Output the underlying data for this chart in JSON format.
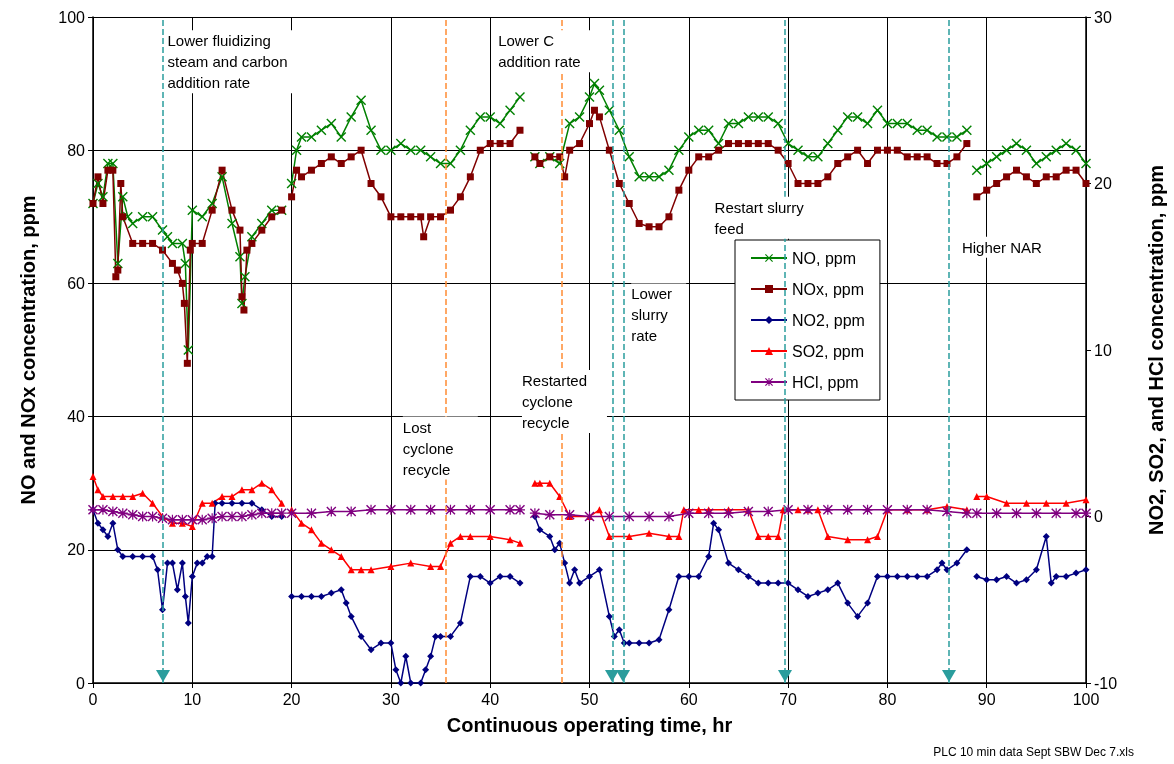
{
  "chart_data": {
    "type": "line",
    "xlabel": "Continuous operating time, hr",
    "ylabel": "NO and NOx concentration, ppm",
    "y2label": "NO2, SO2, and HCl concentration, ppm",
    "xlim": [
      0,
      100
    ],
    "xticks": [
      0,
      10,
      20,
      30,
      40,
      50,
      60,
      70,
      80,
      90,
      100
    ],
    "ylim": [
      0,
      100
    ],
    "yticks": [
      0,
      20,
      40,
      60,
      80,
      100
    ],
    "y2lim": [
      -10,
      30
    ],
    "y2ticks": [
      -10,
      0,
      10,
      20,
      30
    ],
    "grid": true,
    "legend": "right",
    "line_style": "solid",
    "series": [
      {
        "name": "NO, ppm",
        "color": "#008000",
        "marker": "cross",
        "x": [
          0,
          0.5,
          1,
          1.5,
          2,
          2.5,
          3,
          3.5,
          4,
          5,
          6,
          7,
          7.5,
          8,
          9,
          9.3,
          9.6,
          10,
          11,
          12,
          13,
          14,
          14.8,
          15,
          15.3,
          16,
          17,
          18,
          19,
          19.5,
          20,
          20.5,
          21,
          22,
          23,
          24,
          25,
          26,
          27,
          28,
          29,
          30,
          31,
          32,
          33,
          34,
          35,
          36,
          37,
          38,
          39,
          40,
          41,
          42,
          43,
          43.5,
          44.5,
          45,
          46,
          47,
          48,
          49,
          50,
          50.5,
          51,
          52,
          53,
          54,
          55,
          56,
          57,
          58,
          59,
          60,
          61,
          62,
          63,
          64,
          65,
          66,
          67,
          68,
          69,
          70,
          71,
          72,
          73,
          74,
          75,
          76,
          77,
          78,
          79,
          80,
          81,
          82,
          83,
          84,
          85,
          86,
          87,
          88,
          88.5,
          89,
          90,
          91,
          92,
          93,
          94,
          95,
          96,
          97,
          98,
          99,
          100
        ],
        "values": [
          72,
          75,
          73,
          78,
          78,
          63,
          73,
          70,
          69,
          70,
          70,
          68,
          67,
          66,
          66,
          63,
          50,
          71,
          70,
          72,
          76,
          69,
          64,
          57,
          61,
          67,
          69,
          71,
          71,
          null,
          75,
          80,
          82,
          82,
          83,
          84,
          82,
          85,
          87.5,
          83,
          80,
          80,
          81,
          80,
          80,
          79,
          78,
          78,
          80,
          83,
          85,
          85,
          84,
          86,
          88,
          null,
          79,
          78,
          79,
          78,
          84,
          85,
          88,
          90,
          89,
          86,
          83,
          79,
          76,
          76,
          76,
          77,
          80,
          82,
          83,
          83,
          81,
          84,
          84,
          85,
          85,
          85,
          84,
          81,
          80,
          79,
          79,
          81,
          83,
          85,
          85,
          84,
          86,
          84,
          84,
          84,
          83,
          83,
          82,
          82,
          82,
          83,
          null,
          77,
          78,
          79,
          80,
          81,
          80,
          78,
          79,
          80,
          81,
          80,
          78
        ]
      },
      {
        "name": "NOx, ppm",
        "color": "#800000",
        "marker": "square",
        "x": [
          0,
          0.5,
          1,
          1.5,
          2,
          2.3,
          2.5,
          2.8,
          3,
          4,
          5,
          6,
          7,
          8,
          8.5,
          9,
          9.2,
          9.5,
          9.8,
          10,
          11,
          12,
          13,
          14,
          14.8,
          15,
          15.2,
          15.5,
          16,
          17,
          18,
          19,
          19.5,
          20,
          20.5,
          21,
          22,
          23,
          24,
          25,
          26,
          27,
          28,
          29,
          30,
          31,
          32,
          33,
          33.3,
          34,
          35,
          36,
          37,
          38,
          39,
          40,
          41,
          42,
          43,
          43.5,
          44.5,
          45,
          46,
          47,
          47.5,
          48,
          49,
          50,
          50.5,
          51,
          52,
          53,
          54,
          55,
          56,
          57,
          58,
          59,
          60,
          61,
          62,
          63,
          64,
          65,
          66,
          67,
          68,
          69,
          70,
          71,
          72,
          73,
          74,
          75,
          76,
          77,
          78,
          79,
          80,
          81,
          82,
          83,
          84,
          85,
          86,
          87,
          88,
          88.5,
          89,
          90,
          91,
          92,
          93,
          94,
          95,
          96,
          97,
          98,
          99,
          100
        ],
        "values": [
          72,
          76,
          72,
          77,
          77,
          61,
          62,
          75,
          70,
          66,
          66,
          66,
          65,
          63,
          62,
          60,
          57,
          48,
          65,
          66,
          66,
          71,
          77,
          71,
          68,
          58,
          56,
          65,
          66,
          68,
          70,
          71,
          null,
          73,
          77,
          76,
          77,
          78,
          79,
          78,
          79,
          80,
          75,
          73,
          70,
          70,
          70,
          70,
          67,
          70,
          70,
          71,
          73,
          76,
          80,
          81,
          81,
          81,
          83,
          null,
          79,
          78,
          79,
          79,
          76,
          80,
          81,
          84,
          86,
          85,
          80,
          75,
          72,
          69,
          68.5,
          68.5,
          70,
          74,
          77,
          79,
          79,
          80,
          81,
          81,
          81,
          81,
          81,
          80,
          78,
          75,
          75,
          75,
          76,
          78,
          79,
          80,
          78,
          80,
          80,
          80,
          79,
          79,
          79,
          78,
          78,
          79,
          81,
          null,
          73,
          74,
          75,
          76,
          77,
          76,
          75,
          76,
          76,
          77,
          77,
          75
        ]
      },
      {
        "name": "NO2, ppm",
        "color": "#000080",
        "marker": "diamond",
        "axis": "y2",
        "x": [
          0,
          0.5,
          1,
          1.5,
          2,
          2.5,
          3,
          4,
          5,
          6,
          6.5,
          7,
          7.5,
          8,
          8.5,
          9,
          9.3,
          9.6,
          10,
          10.5,
          11,
          11.5,
          12,
          12.3,
          13,
          14,
          15,
          16,
          17,
          18,
          19,
          19.5,
          20,
          21,
          22,
          23,
          24,
          25,
          25.5,
          26,
          27,
          28,
          29,
          30,
          30.5,
          31,
          31.5,
          32,
          33,
          33.5,
          34,
          34.5,
          35,
          36,
          37,
          38,
          39,
          40,
          41,
          42,
          43,
          43.5,
          44.5,
          45,
          46,
          46.5,
          47,
          47.5,
          48,
          48.5,
          49,
          50,
          51,
          52,
          52.5,
          53,
          53.5,
          54,
          55,
          56,
          57,
          58,
          59,
          60,
          61,
          62,
          62.5,
          63,
          64,
          65,
          66,
          67,
          68,
          69,
          70,
          71,
          72,
          73,
          74,
          75,
          76,
          77,
          78,
          79,
          80,
          81,
          82,
          83,
          84,
          85,
          85.5,
          86,
          87,
          88,
          88.5,
          89,
          90,
          91,
          92,
          93,
          94,
          95,
          96,
          96.5,
          97,
          98,
          99,
          100
        ],
        "values": [
          0.4,
          -0.4,
          -0.8,
          -1.2,
          -0.4,
          -2,
          -2.4,
          -2.4,
          -2.4,
          -2.4,
          -3.2,
          -5.6,
          -2.8,
          -2.8,
          -4.4,
          -2.8,
          -4.8,
          -6.4,
          -3.6,
          -2.8,
          -2.8,
          -2.4,
          -2.4,
          0.8,
          0.8,
          0.8,
          0.8,
          0.8,
          0.4,
          0,
          0,
          null,
          -4.8,
          -4.8,
          -4.8,
          -4.8,
          -4.6,
          -4.4,
          -5.2,
          -6,
          -7.2,
          -8,
          -7.6,
          -7.6,
          -9.2,
          -10,
          -8.4,
          -10,
          -10,
          -9.2,
          -8.4,
          -7.2,
          -7.2,
          -7.2,
          -6.4,
          -3.6,
          -3.6,
          -4,
          -3.6,
          -3.6,
          -4,
          null,
          0,
          -0.8,
          -1.2,
          -2,
          -1.6,
          -2.8,
          -4,
          -3.2,
          -4,
          -3.6,
          -3.2,
          -6,
          -7.2,
          -6.8,
          -7.6,
          -7.6,
          -7.6,
          -7.6,
          -7.4,
          -5.6,
          -3.6,
          -3.6,
          -3.6,
          -2.4,
          -0.4,
          -0.8,
          -2.8,
          -3.2,
          -3.6,
          -4,
          -4,
          -4,
          -4,
          -4.4,
          -4.8,
          -4.6,
          -4.4,
          -4,
          -5.2,
          -6,
          -5.2,
          -3.6,
          -3.6,
          -3.6,
          -3.6,
          -3.6,
          -3.6,
          -3.2,
          -2.8,
          -3.2,
          -2.8,
          -2,
          null,
          -3.6,
          -3.8,
          -3.8,
          -3.6,
          -4,
          -3.8,
          -3.2,
          -1.2,
          -4,
          -3.6,
          -3.6,
          -3.4,
          -3.2
        ]
      },
      {
        "name": "SO2, ppm",
        "color": "#ff0000",
        "marker": "triangle",
        "axis": "y2",
        "x": [
          0,
          0.5,
          1,
          2,
          3,
          4,
          5,
          6,
          7,
          8,
          9,
          10,
          11,
          12,
          13,
          14,
          15,
          16,
          17,
          18,
          19,
          19.5,
          20,
          21,
          22,
          23,
          24,
          25,
          26,
          27,
          28,
          30,
          32,
          34,
          35,
          36,
          37,
          38,
          40,
          42,
          43,
          43.5,
          44.5,
          45,
          46,
          47,
          48,
          50,
          51,
          52,
          54,
          56,
          58,
          59,
          59.5,
          61,
          62,
          64,
          66,
          67,
          68,
          69,
          69.5,
          71,
          72,
          73,
          74,
          76,
          78,
          79,
          80,
          82,
          84,
          86,
          88,
          88.5,
          89,
          90,
          92,
          94,
          96,
          98,
          100
        ],
        "values": [
          2.4,
          1.6,
          1.2,
          1.2,
          1.2,
          1.2,
          1.4,
          0.8,
          0,
          -0.4,
          -0.4,
          -0.6,
          0.8,
          0.8,
          1.2,
          1.2,
          1.6,
          1.6,
          2,
          1.6,
          0.8,
          null,
          0.4,
          -0.4,
          -0.8,
          -1.6,
          -2,
          -2.4,
          -3.2,
          -3.2,
          -3.2,
          -3,
          -2.8,
          -3,
          -3,
          -1.6,
          -1.2,
          -1.2,
          -1.2,
          -1.4,
          -1.6,
          null,
          2,
          2,
          2,
          1.2,
          0,
          0,
          0.4,
          -1.2,
          -1.2,
          -1,
          -1.2,
          -1.2,
          0.4,
          0.4,
          0.4,
          0.4,
          0.4,
          -1.2,
          -1.2,
          -1.2,
          0.4,
          0.4,
          0.4,
          0.4,
          -1.2,
          -1.4,
          -1.4,
          -1.2,
          0.4,
          0.4,
          0.4,
          0.6,
          0.4,
          null,
          1.2,
          1.2,
          0.8,
          0.8,
          0.8,
          0.8,
          1
        ]
      },
      {
        "name": "HCl, ppm",
        "color": "#800080",
        "marker": "star",
        "axis": "y2",
        "x": [
          0,
          1,
          2,
          3,
          4,
          5,
          6,
          7,
          8,
          9,
          10,
          11,
          12,
          13,
          14,
          15,
          16,
          17,
          18,
          19,
          19.5,
          20,
          22,
          24,
          26,
          28,
          30,
          32,
          34,
          36,
          38,
          40,
          42,
          43,
          43.5,
          44.5,
          46,
          48,
          50,
          52,
          54,
          56,
          58,
          60,
          62,
          64,
          66,
          68,
          70,
          72,
          74,
          76,
          78,
          80,
          82,
          84,
          86,
          88,
          88.5,
          89,
          91,
          93,
          95,
          97,
          99,
          100
        ],
        "values": [
          0.4,
          0.4,
          0.3,
          0.2,
          0.1,
          0,
          0,
          -0.1,
          -0.2,
          -0.2,
          -0.2,
          -0.2,
          -0.1,
          0,
          0,
          0,
          0.1,
          0.2,
          0.2,
          0.2,
          null,
          0.2,
          0.2,
          0.3,
          0.3,
          0.4,
          0.4,
          0.4,
          0.4,
          0.4,
          0.4,
          0.4,
          0.4,
          0.4,
          null,
          0.2,
          0.1,
          0.1,
          0,
          0,
          0,
          0,
          0,
          0.2,
          0.2,
          0.2,
          0.3,
          0.3,
          0.4,
          0.4,
          0.4,
          0.4,
          0.4,
          0.4,
          0.4,
          0.4,
          0.3,
          0.2,
          null,
          0.2,
          0.2,
          0.2,
          0.2,
          0.2,
          0.2,
          0.2
        ]
      }
    ],
    "ref_lines": [
      {
        "axis": "x",
        "value": 7,
        "color": "#2a9d9d",
        "line_style": "dashed"
      },
      {
        "axis": "x",
        "value": 52.3,
        "color": "#2a9d9d",
        "line_style": "dashed"
      },
      {
        "axis": "x",
        "value": 53.4,
        "color": "#2a9d9d",
        "line_style": "dashed"
      },
      {
        "axis": "x",
        "value": 69.7,
        "color": "#2a9d9d",
        "line_style": "dashed"
      },
      {
        "axis": "x",
        "value": 86.2,
        "color": "#2a9d9d",
        "line_style": "dashed"
      },
      {
        "axis": "x",
        "value": 35.5,
        "color": "#ff8c33",
        "line_style": "dashed"
      },
      {
        "axis": "x",
        "value": 47.2,
        "color": "#ff8c33",
        "line_style": "dashed"
      }
    ],
    "annotations": [
      "Lower fluidizing steam and carbon addition rate",
      "Lower C addition rate",
      "Lost cyclone recycle",
      "Restarted cyclone recycle",
      "Lower slurry rate",
      "Restart slurry feed",
      "Higher NAR",
      "PLC 10 min data Sept SBW Dec 7.xls"
    ]
  }
}
